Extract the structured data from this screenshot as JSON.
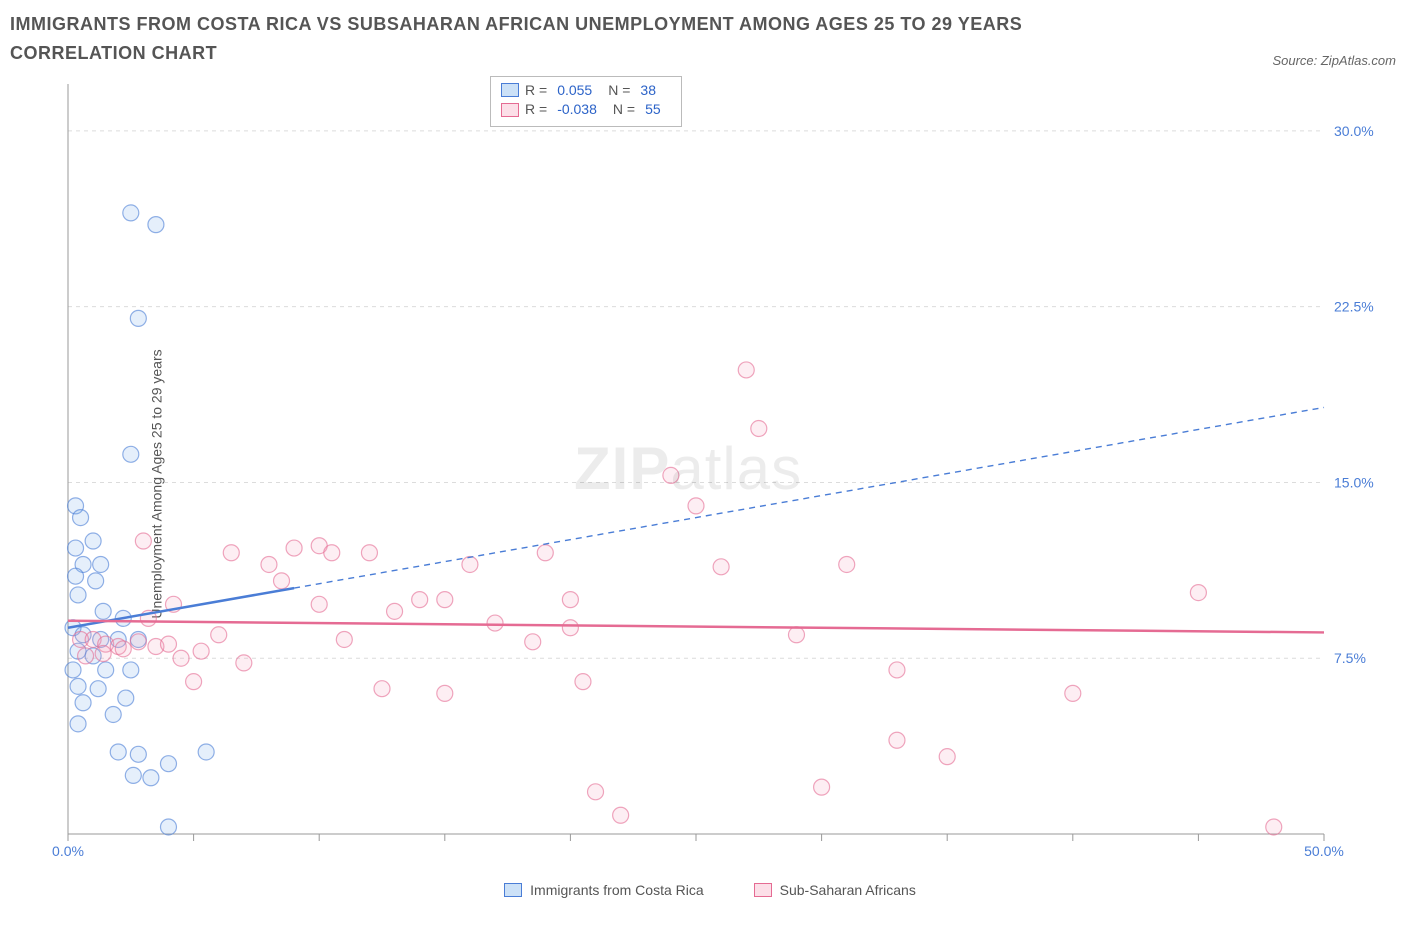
{
  "title": "IMMIGRANTS FROM COSTA RICA VS SUBSAHARAN AFRICAN UNEMPLOYMENT AMONG AGES 25 TO 29 YEARS CORRELATION CHART",
  "source_prefix": "Source: ",
  "source_name": "ZipAtlas.com",
  "ylabel": "Unemployment Among Ages 25 to 29 years",
  "watermark_a": "ZIP",
  "watermark_b": "atlas",
  "chart": {
    "type": "scatter",
    "background_color": "#ffffff",
    "grid_color": "#dcdcdc",
    "axis_color": "#999999",
    "tick_label_color": "#4a7dd6",
    "x_range": [
      0,
      50
    ],
    "y_range": [
      0,
      32
    ],
    "x_ticks": [
      0,
      5,
      10,
      15,
      20,
      25,
      30,
      35,
      40,
      45,
      50
    ],
    "x_tick_labels": {
      "0": "0.0%",
      "50": "50.0%"
    },
    "y_ticks": [
      7.5,
      15.0,
      22.5,
      30.0
    ],
    "y_tick_labels": [
      "7.5%",
      "15.0%",
      "22.5%",
      "30.0%"
    ],
    "marker_radius": 8,
    "marker_fill_opacity": 0.18,
    "series": [
      {
        "key": "costa_rica",
        "label": "Immigrants from Costa Rica",
        "color": "#6ea8e8",
        "stroke": "#4a7dd6",
        "R": "0.055",
        "N": "38",
        "trend": {
          "x1": 0,
          "y1": 8.8,
          "x2": 50,
          "y2": 18.2,
          "solid_until_x": 9
        },
        "points": [
          [
            0.3,
            14.0
          ],
          [
            0.5,
            13.5
          ],
          [
            0.3,
            12.2
          ],
          [
            1.0,
            12.5
          ],
          [
            0.6,
            11.5
          ],
          [
            1.3,
            11.5
          ],
          [
            0.3,
            11.0
          ],
          [
            1.1,
            10.8
          ],
          [
            0.4,
            10.2
          ],
          [
            1.4,
            9.5
          ],
          [
            2.2,
            9.2
          ],
          [
            0.2,
            8.8
          ],
          [
            0.6,
            8.5
          ],
          [
            1.3,
            8.3
          ],
          [
            2.0,
            8.3
          ],
          [
            2.8,
            8.3
          ],
          [
            0.4,
            7.8
          ],
          [
            1.0,
            7.6
          ],
          [
            0.2,
            7.0
          ],
          [
            1.5,
            7.0
          ],
          [
            2.5,
            7.0
          ],
          [
            0.4,
            6.3
          ],
          [
            1.2,
            6.2
          ],
          [
            2.3,
            5.8
          ],
          [
            0.6,
            5.6
          ],
          [
            1.8,
            5.1
          ],
          [
            0.4,
            4.7
          ],
          [
            2.0,
            3.5
          ],
          [
            2.8,
            3.4
          ],
          [
            4.0,
            3.0
          ],
          [
            5.5,
            3.5
          ],
          [
            2.6,
            2.5
          ],
          [
            3.3,
            2.4
          ],
          [
            4.0,
            0.3
          ],
          [
            2.5,
            26.5
          ],
          [
            3.5,
            26.0
          ],
          [
            2.8,
            22.0
          ],
          [
            2.5,
            16.2
          ]
        ]
      },
      {
        "key": "subsaharan",
        "label": "Sub-Saharan Africans",
        "color": "#f5a3bd",
        "stroke": "#e56b93",
        "R": "-0.038",
        "N": "55",
        "trend": {
          "x1": 0,
          "y1": 9.1,
          "x2": 50,
          "y2": 8.6,
          "solid_until_x": 50
        },
        "points": [
          [
            0.5,
            8.3
          ],
          [
            1.0,
            8.3
          ],
          [
            1.5,
            8.1
          ],
          [
            2.0,
            8.0
          ],
          [
            0.7,
            7.6
          ],
          [
            1.4,
            7.7
          ],
          [
            2.2,
            7.9
          ],
          [
            2.8,
            8.2
          ],
          [
            3.5,
            8.0
          ],
          [
            3.2,
            9.2
          ],
          [
            4.0,
            8.1
          ],
          [
            4.5,
            7.5
          ],
          [
            5.3,
            7.8
          ],
          [
            6.0,
            8.5
          ],
          [
            4.2,
            9.8
          ],
          [
            5.0,
            6.5
          ],
          [
            3.0,
            12.5
          ],
          [
            7.0,
            7.3
          ],
          [
            8.0,
            11.5
          ],
          [
            9.0,
            12.2
          ],
          [
            10.0,
            9.8
          ],
          [
            10.0,
            12.3
          ],
          [
            10.5,
            12.0
          ],
          [
            11.0,
            8.3
          ],
          [
            12.0,
            12.0
          ],
          [
            12.5,
            6.2
          ],
          [
            13.0,
            9.5
          ],
          [
            14.0,
            10.0
          ],
          [
            15.0,
            6.0
          ],
          [
            15.0,
            10.0
          ],
          [
            16.0,
            11.5
          ],
          [
            17.0,
            9.0
          ],
          [
            18.5,
            8.2
          ],
          [
            19.0,
            12.0
          ],
          [
            20.0,
            10.0
          ],
          [
            20.0,
            8.8
          ],
          [
            20.5,
            6.5
          ],
          [
            21.0,
            1.8
          ],
          [
            22.0,
            0.8
          ],
          [
            24.0,
            15.3
          ],
          [
            25.0,
            14.0
          ],
          [
            26.0,
            11.4
          ],
          [
            27.0,
            19.8
          ],
          [
            27.5,
            17.3
          ],
          [
            29.0,
            8.5
          ],
          [
            30.0,
            2.0
          ],
          [
            31.0,
            11.5
          ],
          [
            33.0,
            4.0
          ],
          [
            33.0,
            7.0
          ],
          [
            35.0,
            3.3
          ],
          [
            40.0,
            6.0
          ],
          [
            45.0,
            10.3
          ],
          [
            48.0,
            0.3
          ],
          [
            8.5,
            10.8
          ],
          [
            6.5,
            12.0
          ]
        ]
      }
    ]
  },
  "legend_labels": {
    "R": "R =",
    "N": "N ="
  }
}
